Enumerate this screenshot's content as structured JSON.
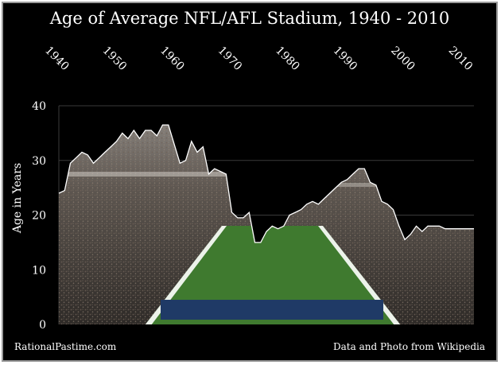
{
  "chart_data": {
    "type": "area",
    "title": "Age of  Average NFL/AFL Stadium, 1940 - 2010",
    "ylabel": "Age in Years",
    "xlabel": "",
    "xlim": [
      1940,
      2012
    ],
    "ylim": [
      0,
      40
    ],
    "y_ticks": [
      0,
      10,
      20,
      30,
      40
    ],
    "x_ticks": [
      1940,
      1950,
      1960,
      1970,
      1980,
      1990,
      2000,
      2010
    ],
    "grid": true,
    "legend": "none",
    "fill_image": "stadium photo (football field and stands)",
    "x": [
      1940,
      1941,
      1942,
      1943,
      1944,
      1945,
      1946,
      1947,
      1948,
      1949,
      1950,
      1951,
      1952,
      1953,
      1954,
      1955,
      1956,
      1957,
      1958,
      1959,
      1960,
      1961,
      1962,
      1963,
      1964,
      1965,
      1966,
      1967,
      1968,
      1969,
      1970,
      1971,
      1972,
      1973,
      1974,
      1975,
      1976,
      1977,
      1978,
      1979,
      1980,
      1981,
      1982,
      1983,
      1984,
      1985,
      1986,
      1987,
      1988,
      1989,
      1990,
      1991,
      1992,
      1993,
      1994,
      1995,
      1996,
      1997,
      1998,
      1999,
      2000,
      2001,
      2002,
      2003,
      2004,
      2005,
      2006,
      2007,
      2008,
      2009,
      2010,
      2011,
      2012
    ],
    "values": [
      24.0,
      24.5,
      29.5,
      30.5,
      31.5,
      31.0,
      29.5,
      30.5,
      31.5,
      32.5,
      33.5,
      35.0,
      34.0,
      35.5,
      34.0,
      35.5,
      35.5,
      34.5,
      36.5,
      36.5,
      33.0,
      29.5,
      30.0,
      33.5,
      31.5,
      32.5,
      27.5,
      28.5,
      28.0,
      27.5,
      20.5,
      19.5,
      19.5,
      20.5,
      15.0,
      15.0,
      17.0,
      18.0,
      17.5,
      18.0,
      20.0,
      20.5,
      21.0,
      22.0,
      22.5,
      22.0,
      23.0,
      24.0,
      25.0,
      26.0,
      26.5,
      27.5,
      28.5,
      28.5,
      26.0,
      25.5,
      22.5,
      22.0,
      21.0,
      18.0,
      15.5,
      16.5,
      18.0,
      17.0,
      18.0,
      18.0,
      18.0,
      17.5,
      17.5,
      17.5,
      17.5,
      17.5,
      17.5
    ]
  },
  "footer": {
    "left": "RationalPastime.com",
    "right": "Data and Photo from Wikipedia"
  },
  "colors": {
    "background": "#000000",
    "text": "#ffffff",
    "grid": "#3a3a3a",
    "outline": "#ffffff",
    "field": "#3f7a2f",
    "stands": "#4a4540"
  }
}
